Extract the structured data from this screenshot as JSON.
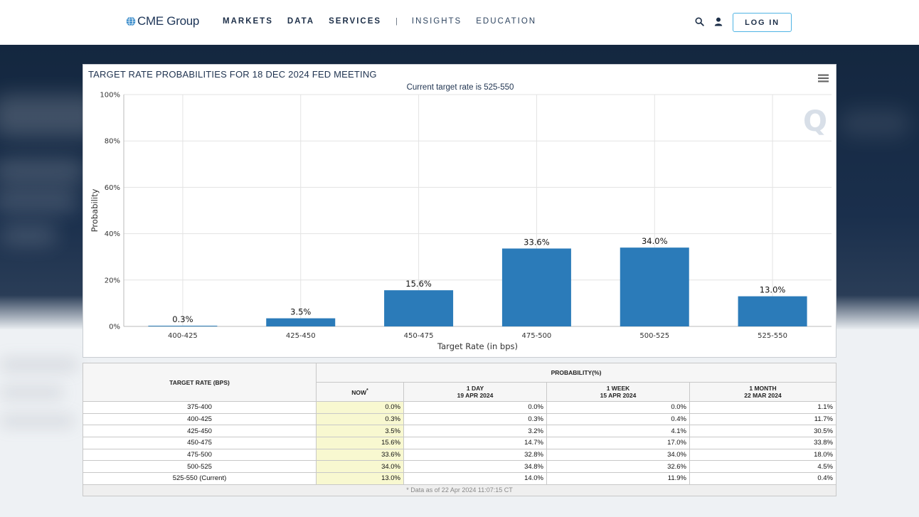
{
  "nav": {
    "logo": "CME Group",
    "links": [
      "MARKETS",
      "DATA",
      "SERVICES",
      "INSIGHTS",
      "EDUCATION"
    ],
    "separator": "|",
    "login": "LOG IN",
    "icons": [
      "search-icon",
      "user-icon"
    ]
  },
  "chart": {
    "title": "TARGET RATE PROBABILITIES FOR 18 DEC 2024 FED MEETING",
    "subtitle": "Current target rate is 525-550",
    "watermark": "Q",
    "menu_icon": "hamburger-icon"
  },
  "chart_data": {
    "type": "bar",
    "categories": [
      "400-425",
      "425-450",
      "450-475",
      "475-500",
      "500-525",
      "525-550"
    ],
    "values": [
      0.3,
      3.5,
      15.6,
      33.6,
      34.0,
      13.0
    ],
    "data_labels": [
      "0.3%",
      "3.5%",
      "15.6%",
      "33.6%",
      "34.0%",
      "13.0%"
    ],
    "xlabel": "Target Rate (in bps)",
    "ylabel": "Probability",
    "ylim": [
      0,
      100
    ],
    "yticks": [
      "0%",
      "20%",
      "40%",
      "60%",
      "80%",
      "100%"
    ],
    "ytick_values": [
      0,
      20,
      40,
      60,
      80,
      100
    ],
    "grid": true,
    "bar_color": "#2b7bb9"
  },
  "table": {
    "header_rate": "TARGET RATE (BPS)",
    "header_prob": "PROBABILITY(%)",
    "cols": [
      {
        "line1": "NOW",
        "line2": "",
        "star": "*"
      },
      {
        "line1": "1 DAY",
        "line2": "19 APR 2024",
        "star": ""
      },
      {
        "line1": "1 WEEK",
        "line2": "15 APR 2024",
        "star": ""
      },
      {
        "line1": "1 MONTH",
        "line2": "22 MAR 2024",
        "star": ""
      }
    ],
    "rows": [
      {
        "rate": "375-400",
        "now": "0.0%",
        "day": "0.0%",
        "week": "0.0%",
        "month": "1.1%"
      },
      {
        "rate": "400-425",
        "now": "0.3%",
        "day": "0.3%",
        "week": "0.4%",
        "month": "11.7%"
      },
      {
        "rate": "425-450",
        "now": "3.5%",
        "day": "3.2%",
        "week": "4.1%",
        "month": "30.5%"
      },
      {
        "rate": "450-475",
        "now": "15.6%",
        "day": "14.7%",
        "week": "17.0%",
        "month": "33.8%"
      },
      {
        "rate": "475-500",
        "now": "33.6%",
        "day": "32.8%",
        "week": "34.0%",
        "month": "18.0%"
      },
      {
        "rate": "500-525",
        "now": "34.0%",
        "day": "34.8%",
        "week": "32.6%",
        "month": "4.5%"
      },
      {
        "rate": "525-550 (Current)",
        "now": "13.0%",
        "day": "14.0%",
        "week": "11.9%",
        "month": "0.4%"
      }
    ],
    "footnote": "* Data as of 22 Apr 2024 11:07:15 CT"
  }
}
